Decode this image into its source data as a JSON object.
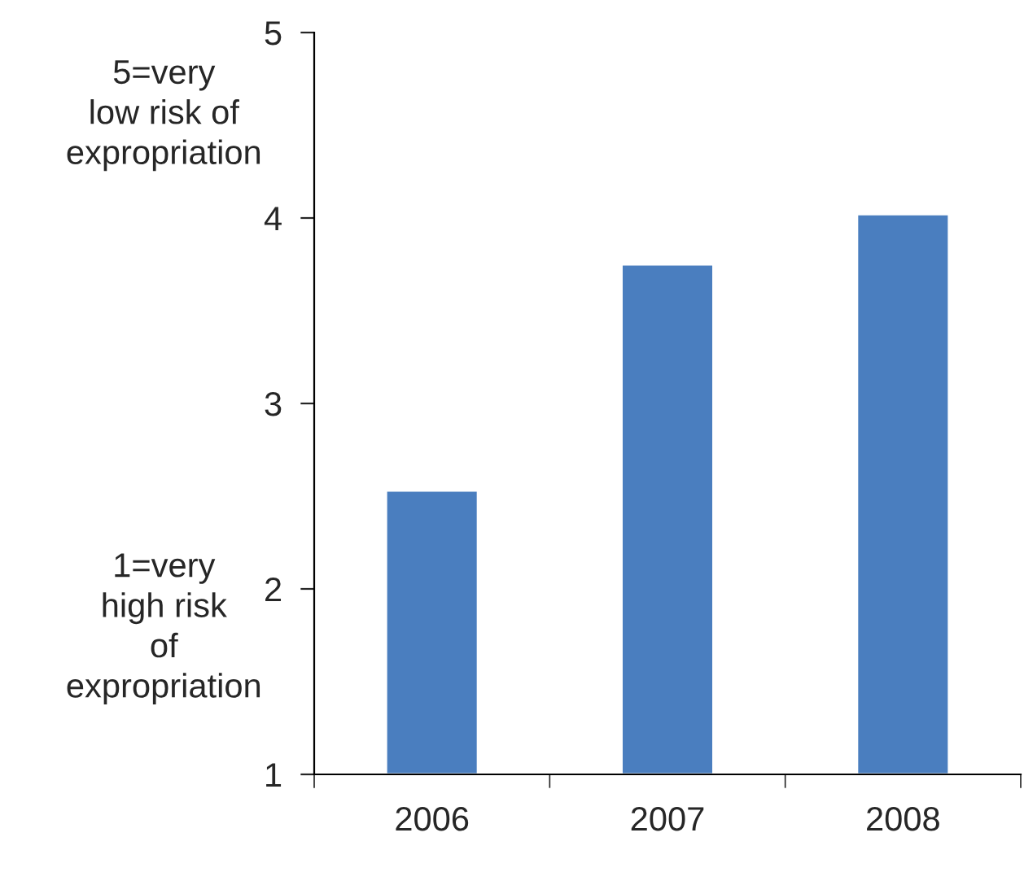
{
  "chart_data": {
    "type": "bar",
    "categories": [
      "2006",
      "2007",
      "2008"
    ],
    "values": [
      2.53,
      3.75,
      4.02
    ],
    "color": "#4a7ebf",
    "ylim": [
      1,
      5
    ],
    "yticks": [
      1,
      2,
      3,
      4,
      5
    ],
    "grid": false,
    "legend": false,
    "annotations": [
      "5=very\nlow risk of\nexpropriation",
      "1=very\nhigh risk\nof\nexpropriation"
    ]
  }
}
